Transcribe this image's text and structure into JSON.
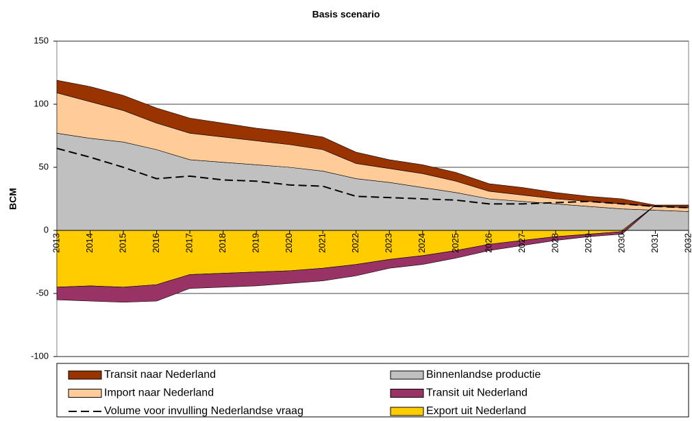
{
  "chart_data": {
    "type": "stacked-area",
    "title": "Basis scenario",
    "y_label": "BCM",
    "categories": [
      "2013",
      "2014",
      "2015",
      "2016",
      "2017",
      "2018",
      "2019",
      "2020",
      "2021",
      "2022",
      "2023",
      "2024",
      "2025",
      "2026",
      "2027",
      "2028",
      "2029",
      "2030",
      "2031",
      "2032"
    ],
    "ylim": [
      -100,
      150
    ],
    "yticks": [
      -100,
      -50,
      0,
      50,
      100,
      150
    ],
    "grid": true,
    "series": [
      {
        "name": "Binnenlandse productie",
        "type": "area",
        "color": "#c0c0c0",
        "values": [
          77,
          73,
          70,
          64,
          56,
          54,
          52,
          50,
          47,
          41,
          38,
          34,
          30,
          25,
          23,
          21,
          19,
          17,
          16,
          15
        ]
      },
      {
        "name": "Import naar Nederland",
        "type": "area",
        "color": "#ffcc99",
        "values": [
          32,
          29,
          25,
          21,
          21,
          20,
          19,
          18,
          17,
          12,
          11,
          11,
          9,
          6,
          5,
          4,
          4,
          4,
          3,
          3
        ]
      },
      {
        "name": "Transit naar Nederland",
        "type": "area",
        "color": "#993300",
        "values": [
          10,
          12,
          12,
          12,
          12,
          11,
          10,
          10,
          10,
          9,
          7,
          7,
          7,
          6,
          6,
          5,
          4,
          4,
          1,
          2
        ]
      },
      {
        "name": "Export uit Nederland",
        "type": "area",
        "color": "#ffcc00",
        "values": [
          -45,
          -44,
          -45,
          -43,
          -35,
          -34,
          -33,
          -32,
          -30,
          -27,
          -23,
          -20,
          -16,
          -11,
          -8,
          -5,
          -3,
          -1,
          0,
          0
        ]
      },
      {
        "name": "Transit uit Nederland",
        "type": "area",
        "color": "#993366",
        "values": [
          -10,
          -12,
          -12,
          -13,
          -11,
          -11,
          -11,
          -10,
          -10,
          -9,
          -7,
          -7,
          -6,
          -5,
          -4,
          -3,
          -2,
          -2,
          0,
          0
        ]
      },
      {
        "name": "Volume voor invulling Nederlandse vraag",
        "type": "line",
        "color": "#000000",
        "values": [
          65,
          58,
          50,
          41,
          43,
          40,
          39,
          36,
          35,
          27,
          26,
          25,
          24,
          21,
          21,
          22,
          23,
          21,
          19,
          18
        ]
      }
    ]
  }
}
